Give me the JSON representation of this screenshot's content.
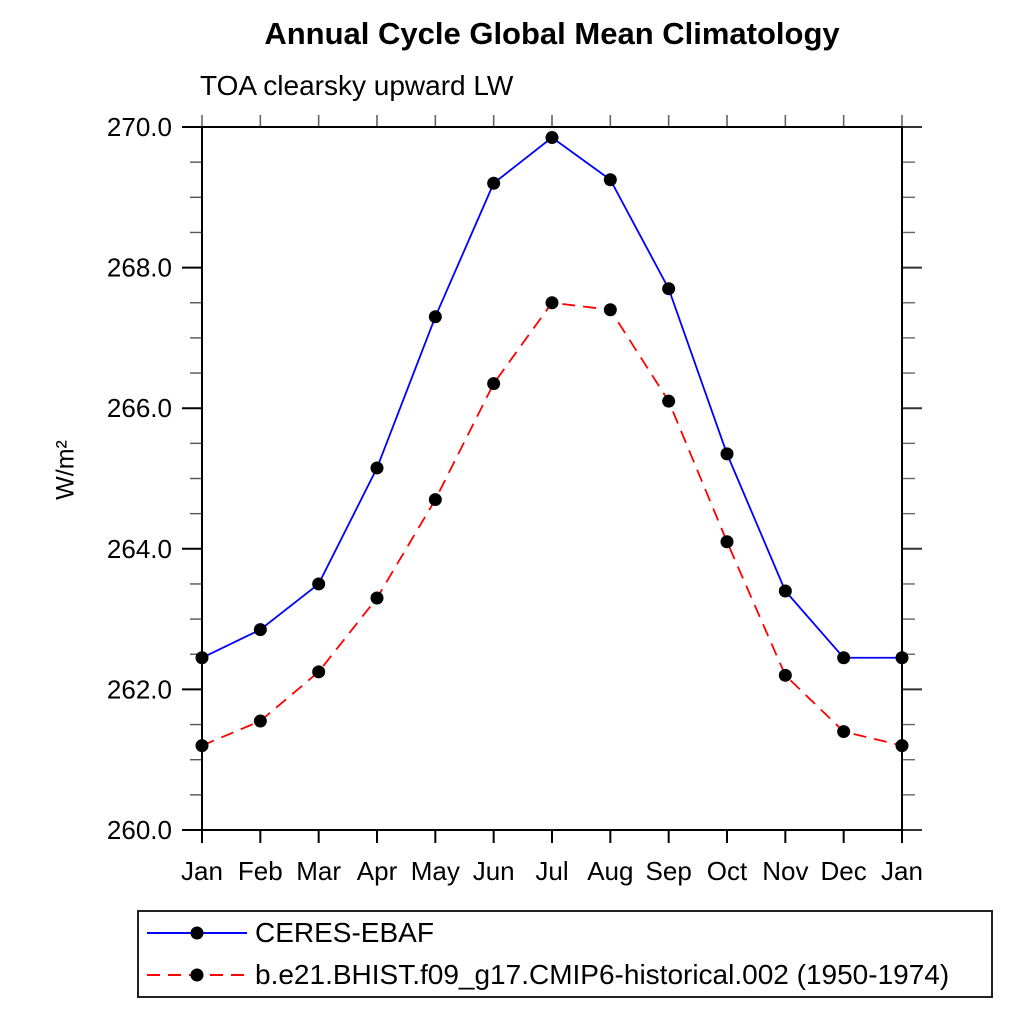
{
  "chart_data": {
    "type": "line",
    "title": "Annual Cycle Global Mean Climatology",
    "subtitle": "TOA clearsky upward LW",
    "ylabel": "W/m²",
    "xlabel": "",
    "x_categories": [
      "Jan",
      "Feb",
      "Mar",
      "Apr",
      "May",
      "Jun",
      "Jul",
      "Aug",
      "Sep",
      "Oct",
      "Nov",
      "Dec",
      "Jan"
    ],
    "ylim": [
      260.0,
      270.0
    ],
    "ytick_major_values": [
      260,
      262,
      264,
      266,
      268,
      270
    ],
    "ytick_major_labels": [
      "260.0",
      "262.0",
      "264.0",
      "266.0",
      "268.0",
      "270.0"
    ],
    "ytick_minor_step": 0.5,
    "grid": false,
    "frame": "full-box",
    "legend_position": "bottom-left-box",
    "colors": {
      "axis": "#000000",
      "minor_tick": "#666666",
      "series1": "#0000ff",
      "series2": "#ff0000",
      "marker": "#000000"
    },
    "series": [
      {
        "name": "CERES-EBAF",
        "color": "#0000ff",
        "line_style": "solid",
        "marker": "filled-circle",
        "marker_color": "#000000",
        "values": [
          262.45,
          262.85,
          263.5,
          265.15,
          267.3,
          269.2,
          269.85,
          269.25,
          267.7,
          265.35,
          263.4,
          262.45,
          262.45
        ]
      },
      {
        "name": "b.e21.BHIST.f09_g17.CMIP6-historical.002 (1950-1974)",
        "color": "#ff0000",
        "line_style": "dashed",
        "marker": "filled-circle",
        "marker_color": "#000000",
        "values": [
          261.2,
          261.55,
          262.25,
          263.3,
          264.7,
          266.35,
          267.5,
          267.4,
          266.1,
          264.1,
          262.2,
          261.4,
          261.2
        ]
      }
    ]
  }
}
